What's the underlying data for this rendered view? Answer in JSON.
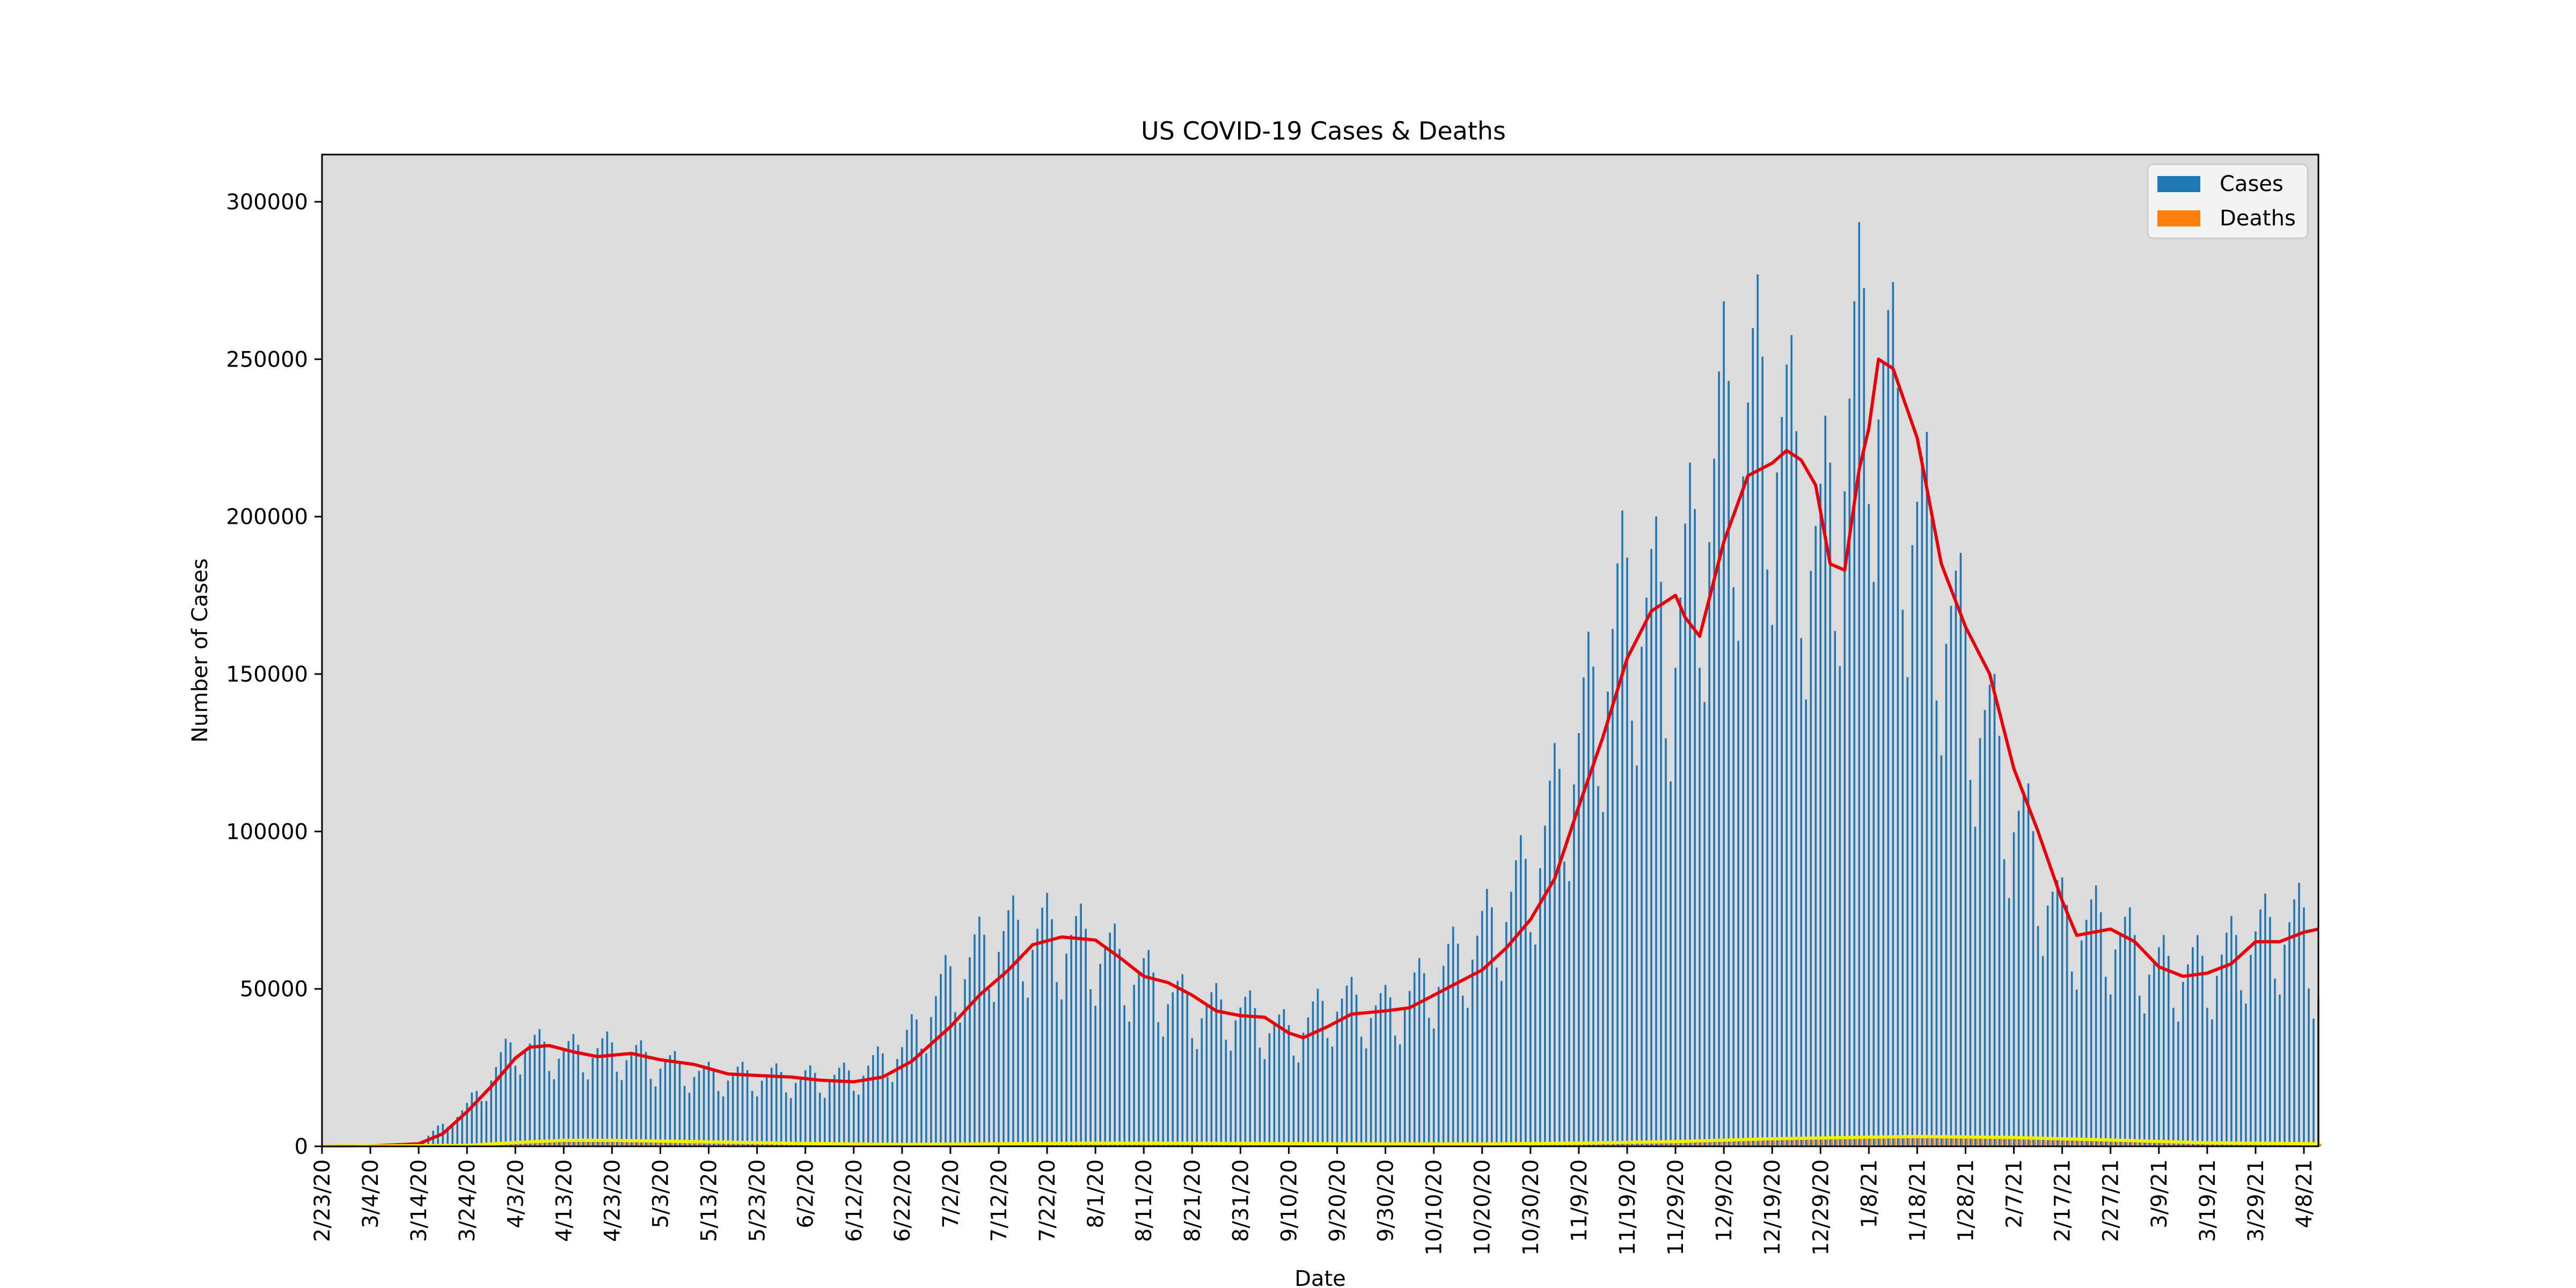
{
  "chart_data": {
    "type": "bar",
    "title": "US COVID-19 Cases & Deaths",
    "xlabel": "Date",
    "ylabel": "Number of Cases",
    "ylim": [
      0,
      315000
    ],
    "yticks": [
      0,
      50000,
      100000,
      150000,
      200000,
      250000,
      300000
    ],
    "xticks": [
      "2/23/20",
      "3/4/20",
      "3/14/20",
      "3/24/20",
      "4/3/20",
      "4/13/20",
      "4/23/20",
      "5/3/20",
      "5/13/20",
      "5/23/20",
      "6/2/20",
      "6/12/20",
      "6/22/20",
      "7/2/20",
      "7/12/20",
      "7/22/20",
      "8/1/20",
      "8/11/20",
      "8/21/20",
      "8/31/20",
      "9/10/20",
      "9/20/20",
      "9/30/20",
      "10/10/20",
      "10/20/20",
      "10/30/20",
      "11/9/20",
      "11/19/20",
      "11/29/20",
      "12/9/20",
      "12/19/20",
      "12/29/20",
      "1/8/21",
      "1/18/21",
      "1/28/21",
      "2/7/21",
      "2/17/21",
      "2/27/21",
      "3/9/21",
      "3/19/21",
      "3/29/21",
      "4/8/21"
    ],
    "x_start": "2/23/20",
    "x_end": "4/11/21",
    "grid": false,
    "legend_position": "top-right",
    "legend": [
      "Cases",
      "Deaths"
    ],
    "colors": {
      "cases": "#1f77b4",
      "deaths": "#ff7f0e",
      "cases_avg": "#e8000b",
      "deaths_avg": "#f5f000",
      "plot_bg": "#dcdcdc"
    },
    "series": [
      {
        "name": "Cases",
        "type": "bar",
        "points": [
          [
            "2/23/20",
            0
          ],
          [
            "3/4/20",
            100
          ],
          [
            "3/14/20",
            1000
          ],
          [
            "3/24/20",
            12000
          ],
          [
            "4/3/20",
            32000
          ],
          [
            "4/13/20",
            29000
          ],
          [
            "4/23/20",
            30000
          ],
          [
            "5/3/20",
            26000
          ],
          [
            "5/13/20",
            22000
          ],
          [
            "5/23/20",
            22000
          ],
          [
            "6/2/20",
            21000
          ],
          [
            "6/12/20",
            22000
          ],
          [
            "6/22/20",
            30000
          ],
          [
            "7/2/20",
            52000
          ],
          [
            "7/12/20",
            65000
          ],
          [
            "7/22/20",
            66000
          ],
          [
            "8/1/20",
            62000
          ],
          [
            "8/11/20",
            52000
          ],
          [
            "8/21/20",
            43000
          ],
          [
            "8/31/20",
            42000
          ],
          [
            "9/10/20",
            35000
          ],
          [
            "9/20/20",
            45000
          ],
          [
            "9/30/20",
            42000
          ],
          [
            "10/10/20",
            52000
          ],
          [
            "10/20/20",
            65000
          ],
          [
            "10/30/20",
            85000
          ],
          [
            "11/9/20",
            125000
          ],
          [
            "11/19/20",
            170000
          ],
          [
            "11/29/20",
            160000
          ],
          [
            "12/9/20",
            220000
          ],
          [
            "12/19/20",
            230000
          ],
          [
            "12/29/20",
            183000
          ],
          [
            "1/8/21",
            255000
          ],
          [
            "1/18/21",
            195000
          ],
          [
            "1/28/21",
            150000
          ],
          [
            "2/7/21",
            105000
          ],
          [
            "2/17/21",
            70000
          ],
          [
            "2/27/21",
            67000
          ],
          [
            "3/9/21",
            55000
          ],
          [
            "3/19/21",
            55000
          ],
          [
            "3/29/21",
            65000
          ],
          [
            "4/8/21",
            69000
          ],
          [
            "4/11/21",
            50000
          ]
        ]
      },
      {
        "name": "Deaths",
        "type": "bar",
        "points": [
          [
            "2/23/20",
            0
          ],
          [
            "3/14/20",
            20
          ],
          [
            "3/24/20",
            300
          ],
          [
            "4/3/20",
            1500
          ],
          [
            "4/13/20",
            2200
          ],
          [
            "4/23/20",
            2100
          ],
          [
            "5/3/20",
            1800
          ],
          [
            "5/13/20",
            1500
          ],
          [
            "5/23/20",
            1200
          ],
          [
            "6/2/20",
            900
          ],
          [
            "6/22/20",
            600
          ],
          [
            "7/12/20",
            800
          ],
          [
            "8/1/20",
            1100
          ],
          [
            "8/21/20",
            1000
          ],
          [
            "9/10/20",
            850
          ],
          [
            "10/10/20",
            700
          ],
          [
            "10/30/20",
            850
          ],
          [
            "11/19/20",
            1500
          ],
          [
            "12/9/20",
            2500
          ],
          [
            "12/29/20",
            2600
          ],
          [
            "1/18/21",
            3300
          ],
          [
            "2/7/21",
            2700
          ],
          [
            "2/27/21",
            2000
          ],
          [
            "3/19/21",
            1000
          ],
          [
            "4/11/21",
            800
          ]
        ]
      },
      {
        "name": "",
        "type": "line",
        "color": "#e8000b",
        "points": [
          [
            "2/23/20",
            0
          ],
          [
            "3/4/20",
            100
          ],
          [
            "3/14/20",
            800
          ],
          [
            "3/19/20",
            4000
          ],
          [
            "3/24/20",
            11000
          ],
          [
            "3/29/20",
            19000
          ],
          [
            "4/3/20",
            28000
          ],
          [
            "4/6/20",
            31500
          ],
          [
            "4/10/20",
            32000
          ],
          [
            "4/15/20",
            30000
          ],
          [
            "4/20/20",
            28500
          ],
          [
            "4/27/20",
            29500
          ],
          [
            "5/3/20",
            27500
          ],
          [
            "5/10/20",
            26000
          ],
          [
            "5/17/20",
            23000
          ],
          [
            "5/23/20",
            22500
          ],
          [
            "5/30/20",
            22000
          ],
          [
            "6/5/20",
            21000
          ],
          [
            "6/12/20",
            20500
          ],
          [
            "6/18/20",
            22000
          ],
          [
            "6/24/20",
            27000
          ],
          [
            "7/2/20",
            38000
          ],
          [
            "7/8/20",
            48000
          ],
          [
            "7/14/20",
            56000
          ],
          [
            "7/19/20",
            64000
          ],
          [
            "7/25/20",
            66500
          ],
          [
            "8/1/20",
            65500
          ],
          [
            "8/6/20",
            60000
          ],
          [
            "8/11/20",
            54000
          ],
          [
            "8/16/20",
            52000
          ],
          [
            "8/21/20",
            48000
          ],
          [
            "8/26/20",
            43000
          ],
          [
            "8/31/20",
            41500
          ],
          [
            "9/5/20",
            41000
          ],
          [
            "9/10/20",
            36000
          ],
          [
            "9/13/20",
            34500
          ],
          [
            "9/18/20",
            38000
          ],
          [
            "9/23/20",
            42000
          ],
          [
            "9/30/20",
            43000
          ],
          [
            "10/5/20",
            44000
          ],
          [
            "10/10/20",
            48000
          ],
          [
            "10/15/20",
            52000
          ],
          [
            "10/20/20",
            56000
          ],
          [
            "10/25/20",
            63000
          ],
          [
            "10/30/20",
            72000
          ],
          [
            "11/4/20",
            85000
          ],
          [
            "11/9/20",
            108000
          ],
          [
            "11/14/20",
            130000
          ],
          [
            "11/19/20",
            155000
          ],
          [
            "11/24/20",
            170000
          ],
          [
            "11/29/20",
            175000
          ],
          [
            "12/1/20",
            168000
          ],
          [
            "12/4/20",
            162000
          ],
          [
            "12/9/20",
            192000
          ],
          [
            "12/14/20",
            213000
          ],
          [
            "12/19/20",
            217000
          ],
          [
            "12/22/20",
            221000
          ],
          [
            "12/25/20",
            218000
          ],
          [
            "12/28/20",
            210000
          ],
          [
            "12/31/20",
            185000
          ],
          [
            "1/3/21",
            183000
          ],
          [
            "1/6/21",
            215000
          ],
          [
            "1/8/21",
            228000
          ],
          [
            "1/10/21",
            250000
          ],
          [
            "1/13/21",
            247000
          ],
          [
            "1/18/21",
            225000
          ],
          [
            "1/23/21",
            185000
          ],
          [
            "1/28/21",
            165000
          ],
          [
            "2/2/21",
            150000
          ],
          [
            "2/7/21",
            120000
          ],
          [
            "2/12/21",
            100000
          ],
          [
            "2/17/21",
            78000
          ],
          [
            "2/20/21",
            67000
          ],
          [
            "2/27/21",
            69000
          ],
          [
            "3/4/21",
            65000
          ],
          [
            "3/9/21",
            57000
          ],
          [
            "3/14/21",
            54000
          ],
          [
            "3/19/21",
            55000
          ],
          [
            "3/24/21",
            58000
          ],
          [
            "3/29/21",
            65000
          ],
          [
            "4/3/21",
            65000
          ],
          [
            "4/8/21",
            68000
          ],
          [
            "4/11/21",
            69000
          ]
        ]
      },
      {
        "name": "",
        "type": "line",
        "color": "#f5f000",
        "points": [
          [
            "2/23/20",
            0
          ],
          [
            "3/24/20",
            300
          ],
          [
            "4/3/20",
            1200
          ],
          [
            "4/13/20",
            1900
          ],
          [
            "4/23/20",
            1900
          ],
          [
            "5/13/20",
            1400
          ],
          [
            "6/2/20",
            900
          ],
          [
            "6/22/20",
            600
          ],
          [
            "7/12/20",
            800
          ],
          [
            "8/1/20",
            1000
          ],
          [
            "8/21/20",
            950
          ],
          [
            "9/20/20",
            800
          ],
          [
            "10/20/20",
            750
          ],
          [
            "11/9/20",
            1000
          ],
          [
            "11/29/20",
            1500
          ],
          [
            "12/19/20",
            2400
          ],
          [
            "1/8/21",
            2900
          ],
          [
            "1/18/21",
            3100
          ],
          [
            "2/7/21",
            2800
          ],
          [
            "2/27/21",
            2000
          ],
          [
            "3/19/21",
            1100
          ],
          [
            "4/11/21",
            800
          ]
        ]
      }
    ]
  }
}
